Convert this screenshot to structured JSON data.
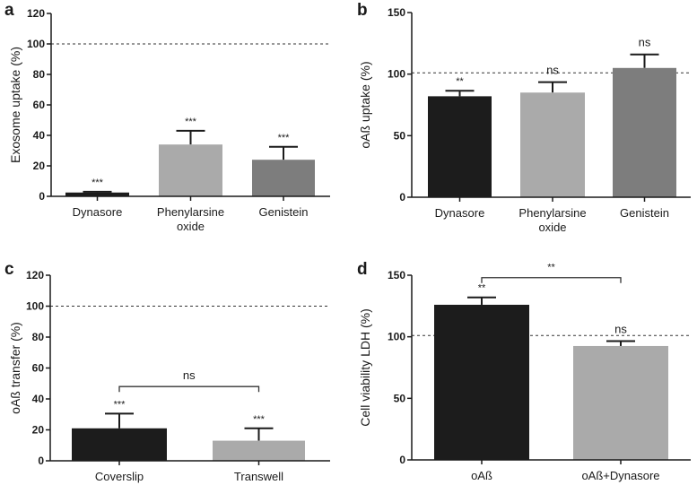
{
  "chart_data": [
    {
      "panel": "a",
      "type": "bar",
      "ylabel": "Exosome uptake (%)",
      "ylim": [
        0,
        120
      ],
      "yticks": [
        0,
        20,
        40,
        60,
        80,
        100,
        120
      ],
      "reference_line": 100,
      "categories": [
        "Dynasore",
        "Phenylarsine\noxide",
        "Genistein"
      ],
      "values": [
        2.5,
        34,
        24
      ],
      "error_upper": [
        3,
        43,
        32.5
      ],
      "colors": [
        "#1c1c1c",
        "#aaaaaa",
        "#7d7d7d"
      ],
      "significance": [
        "***",
        "***",
        "***"
      ],
      "brackets": []
    },
    {
      "panel": "b",
      "type": "bar",
      "ylabel": "oAß uptake (%)",
      "ylim": [
        0,
        150
      ],
      "yticks": [
        0,
        50,
        100,
        150
      ],
      "reference_line": 101,
      "categories": [
        "Dynasore",
        "Phenylarsine\noxide",
        "Genistein"
      ],
      "values": [
        82,
        85,
        105
      ],
      "error_upper": [
        86.5,
        93.5,
        116
      ],
      "colors": [
        "#1c1c1c",
        "#aaaaaa",
        "#7d7d7d"
      ],
      "significance": [
        "**",
        "ns",
        "ns"
      ],
      "brackets": []
    },
    {
      "panel": "c",
      "type": "bar",
      "ylabel": "oAß transfer (%)",
      "ylim": [
        0,
        120
      ],
      "yticks": [
        0,
        20,
        40,
        60,
        80,
        100,
        120
      ],
      "reference_line": 100,
      "categories": [
        "Coverslip",
        "Transwell"
      ],
      "values": [
        21,
        13
      ],
      "error_upper": [
        30.5,
        21
      ],
      "colors": [
        "#1c1c1c",
        "#aaaaaa"
      ],
      "significance": [
        "***",
        "***"
      ],
      "brackets": [
        {
          "from": 0,
          "to": 1,
          "level": 48,
          "label": "ns"
        }
      ]
    },
    {
      "panel": "d",
      "type": "bar",
      "ylabel": "Cell viability LDH (%)",
      "ylim": [
        0,
        150
      ],
      "yticks": [
        0,
        50,
        100,
        150
      ],
      "reference_line": 101,
      "categories": [
        "oAß",
        "oAß+Dynasore"
      ],
      "values": [
        126,
        92.5
      ],
      "error_upper": [
        132,
        96.5
      ],
      "colors": [
        "#1c1c1c",
        "#aaaaaa"
      ],
      "significance": [
        "**",
        "ns"
      ],
      "brackets": [
        {
          "from": 0,
          "to": 1,
          "level": 148,
          "label": "**"
        }
      ]
    }
  ]
}
